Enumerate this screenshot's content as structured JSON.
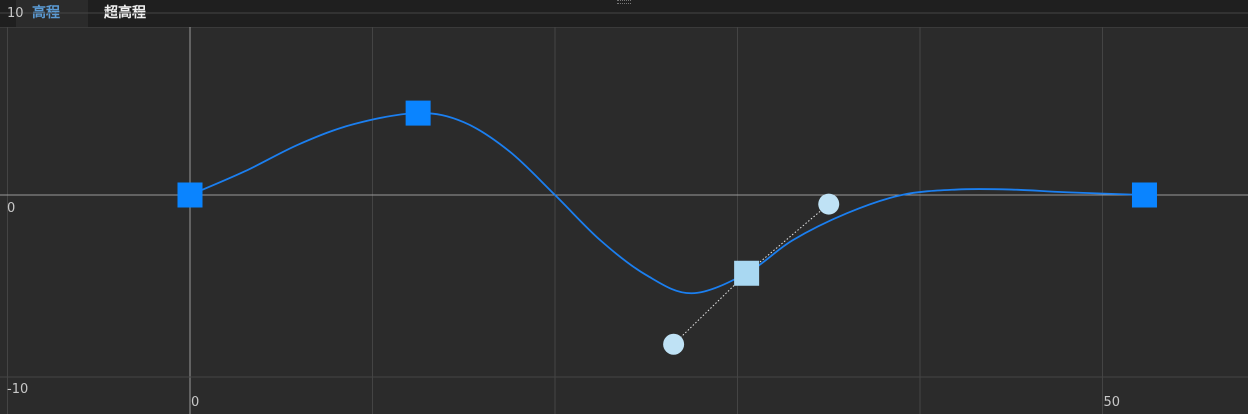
{
  "tabs": [
    {
      "label": "高程",
      "active": true
    },
    {
      "label": "超高程",
      "active": false
    }
  ],
  "colors": {
    "background": "#2b2b2b",
    "curve": "#1b7ff0",
    "keyframe": "#0a84ff",
    "selected_keyframe": "#a9d8f2",
    "handle": "#bfe2f5",
    "grid": "#444444",
    "axis": "#9a9a9a"
  },
  "chart_data": {
    "type": "line",
    "xlabel": "",
    "ylabel": "",
    "x_tick_labels": [
      "0",
      "50"
    ],
    "y_tick_labels": [
      "10",
      "0",
      "-10"
    ],
    "xlim": [
      -10,
      57
    ],
    "ylim": [
      -10.5,
      10
    ],
    "keyframes": [
      {
        "x": 0,
        "y": 0,
        "selected": false
      },
      {
        "x": 12.5,
        "y": 4.5,
        "selected": false
      },
      {
        "x": 30.5,
        "y": -4.3,
        "selected": true
      },
      {
        "x": 52.3,
        "y": 0,
        "selected": false
      }
    ],
    "handles": [
      {
        "x": 26.5,
        "y": -8.2
      },
      {
        "x": 35,
        "y": -0.5
      }
    ],
    "curve": [
      [
        0,
        0
      ],
      [
        3,
        1.3
      ],
      [
        6,
        2.8
      ],
      [
        9,
        3.9
      ],
      [
        12.5,
        4.5
      ],
      [
        15,
        4.0
      ],
      [
        17.5,
        2.4
      ],
      [
        20,
        0
      ],
      [
        22.5,
        -2.5
      ],
      [
        25,
        -4.4
      ],
      [
        27.5,
        -5.4
      ],
      [
        30.5,
        -4.3
      ],
      [
        33,
        -2.5
      ],
      [
        36,
        -1.0
      ],
      [
        39,
        0
      ],
      [
        42,
        0.3
      ],
      [
        45,
        0.3
      ],
      [
        48,
        0.15
      ],
      [
        52.3,
        0
      ]
    ]
  }
}
